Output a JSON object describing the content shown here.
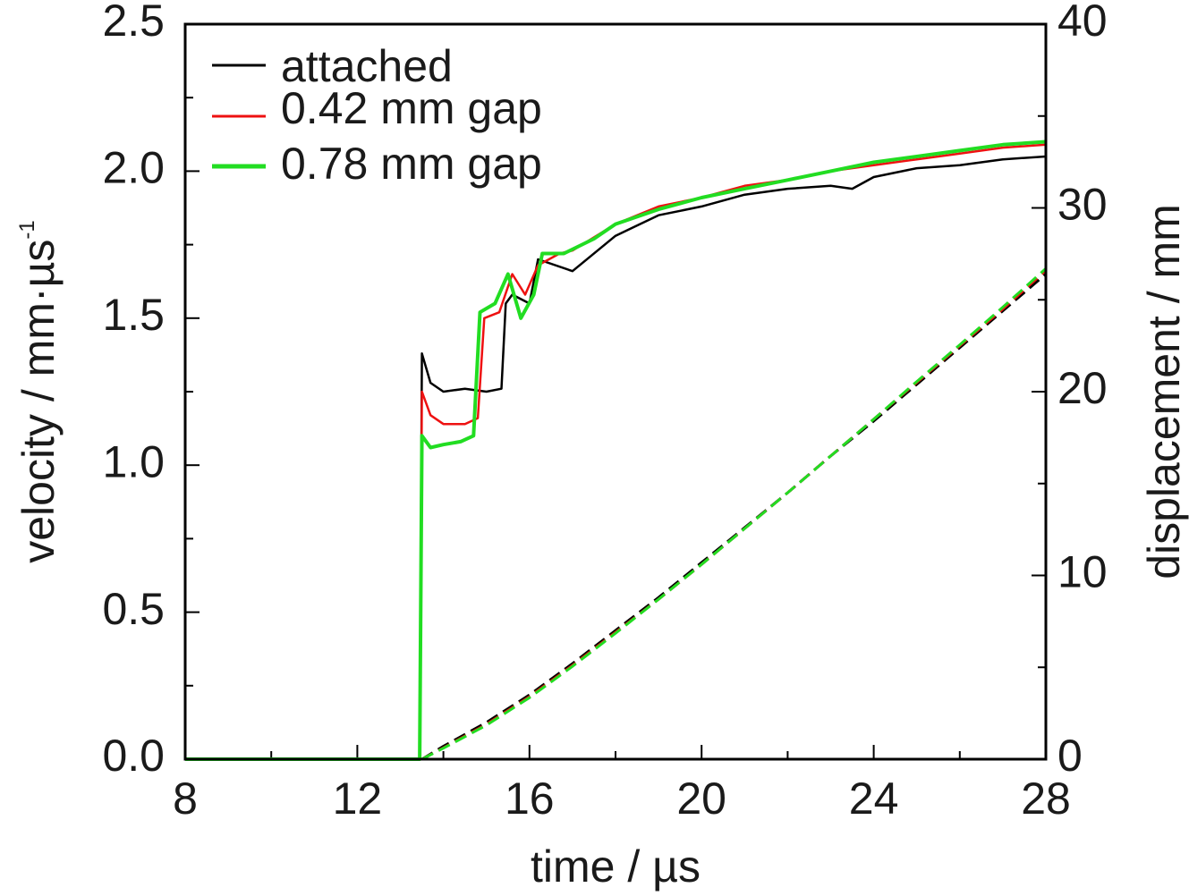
{
  "chart_data": {
    "type": "line",
    "x_axis": {
      "label": "time / µs",
      "range": [
        8,
        28
      ],
      "ticks": [
        8,
        12,
        16,
        20,
        24,
        28
      ],
      "tick_labels": [
        "8",
        "12",
        "16",
        "20",
        "24",
        "28"
      ]
    },
    "y_axis_left": {
      "label": "velocity / mm·µs",
      "label_superscript": "-1",
      "range": [
        0,
        2.5
      ],
      "ticks": [
        0,
        0.5,
        1.0,
        1.5,
        2.0,
        2.5
      ],
      "tick_labels": [
        "0.0",
        "0.5",
        "1.0",
        "1.5",
        "2.0",
        "2.5"
      ]
    },
    "y_axis_right": {
      "label": "displacement / mm",
      "range": [
        0,
        40
      ],
      "ticks": [
        0,
        10,
        20,
        30,
        40
      ],
      "tick_labels": [
        "0",
        "10",
        "20",
        "30",
        "40"
      ]
    },
    "grid": false,
    "legend_position": "top-left",
    "velocity_series": [
      {
        "name": "attached",
        "color": "#000000",
        "axis": "left",
        "x": [
          8,
          13.45,
          13.5,
          13.7,
          14.0,
          14.5,
          15.0,
          15.35,
          15.45,
          15.6,
          16.0,
          16.2,
          17.0,
          18.0,
          19.0,
          20.0,
          21.0,
          22.0,
          23.0,
          23.5,
          24.0,
          25.0,
          26.0,
          27.0,
          28.0
        ],
        "y": [
          0,
          0,
          1.38,
          1.28,
          1.25,
          1.26,
          1.25,
          1.26,
          1.55,
          1.58,
          1.55,
          1.7,
          1.66,
          1.78,
          1.85,
          1.88,
          1.92,
          1.94,
          1.95,
          1.94,
          1.98,
          2.01,
          2.02,
          2.04,
          2.05
        ]
      },
      {
        "name": "0.42 mm gap",
        "color": "#ee1111",
        "axis": "left",
        "x": [
          8,
          13.45,
          13.5,
          13.7,
          14.0,
          14.5,
          14.8,
          14.95,
          15.3,
          15.6,
          15.9,
          16.2,
          16.7,
          17.0,
          18.0,
          19.0,
          20.0,
          21.0,
          22.0,
          23.0,
          24.0,
          25.0,
          26.0,
          27.0,
          28.0
        ],
        "y": [
          0,
          0,
          1.25,
          1.17,
          1.14,
          1.14,
          1.16,
          1.5,
          1.52,
          1.65,
          1.58,
          1.68,
          1.72,
          1.73,
          1.82,
          1.88,
          1.91,
          1.95,
          1.97,
          2.0,
          2.02,
          2.04,
          2.06,
          2.08,
          2.09
        ]
      },
      {
        "name": "0.78 mm gap",
        "color": "#22dd22",
        "axis": "left",
        "x": [
          8,
          13.45,
          13.5,
          13.7,
          14.0,
          14.4,
          14.7,
          14.85,
          15.2,
          15.5,
          15.8,
          16.1,
          16.3,
          16.8,
          17.5,
          18.0,
          19.0,
          20.0,
          21.0,
          22.0,
          23.0,
          24.0,
          25.0,
          26.0,
          27.0,
          28.0
        ],
        "y": [
          0,
          0,
          1.1,
          1.06,
          1.07,
          1.08,
          1.1,
          1.52,
          1.55,
          1.65,
          1.5,
          1.58,
          1.72,
          1.72,
          1.77,
          1.82,
          1.87,
          1.91,
          1.94,
          1.97,
          2.0,
          2.03,
          2.05,
          2.07,
          2.09,
          2.1
        ]
      }
    ],
    "displacement_series": [
      {
        "color": "#000000",
        "axis": "right",
        "dashed": true,
        "x": [
          13.5,
          14.0,
          15.0,
          16.0,
          17.0,
          18.0,
          19.0,
          20.0,
          21.0,
          22.0,
          23.0,
          24.0,
          25.0,
          26.0,
          27.0,
          28.0
        ],
        "y": [
          0,
          0.7,
          2.0,
          3.5,
          5.2,
          7.0,
          8.8,
          10.7,
          12.6,
          14.5,
          16.5,
          18.4,
          20.4,
          22.4,
          24.4,
          26.4
        ]
      },
      {
        "color": "#ee1111",
        "axis": "right",
        "dashed": true,
        "x": [
          13.5,
          14.0,
          15.0,
          16.0,
          17.0,
          18.0,
          19.0,
          20.0,
          21.0,
          22.0,
          23.0,
          24.0,
          25.0,
          26.0,
          27.0,
          28.0
        ],
        "y": [
          0,
          0.62,
          1.9,
          3.4,
          5.1,
          6.9,
          8.7,
          10.6,
          12.55,
          14.5,
          16.5,
          18.5,
          20.5,
          22.5,
          24.5,
          26.6
        ]
      },
      {
        "color": "#22dd22",
        "axis": "right",
        "dashed": true,
        "x": [
          13.5,
          14.0,
          15.0,
          16.0,
          17.0,
          18.0,
          19.0,
          20.0,
          21.0,
          22.0,
          23.0,
          24.0,
          25.0,
          26.0,
          27.0,
          28.0
        ],
        "y": [
          0,
          0.6,
          1.85,
          3.35,
          5.05,
          6.85,
          8.7,
          10.6,
          12.55,
          14.5,
          16.5,
          18.5,
          20.55,
          22.55,
          24.6,
          26.7
        ]
      }
    ]
  }
}
